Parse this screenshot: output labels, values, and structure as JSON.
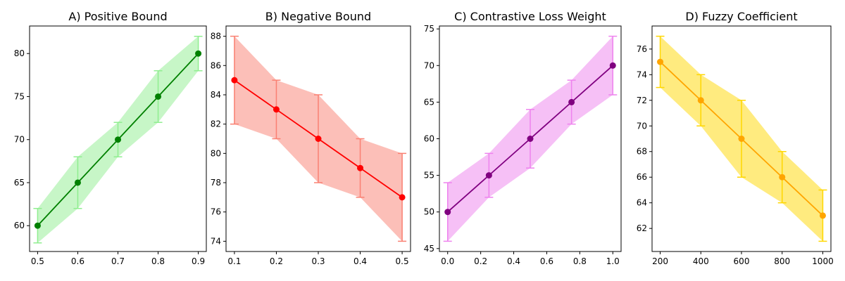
{
  "chart_data": [
    {
      "type": "line",
      "title": "A) Positive Bound",
      "x": [
        0.5,
        0.6,
        0.7,
        0.8,
        0.9
      ],
      "y": [
        60,
        65,
        70,
        75,
        80
      ],
      "lower": [
        58,
        62,
        68,
        72,
        78
      ],
      "upper": [
        62,
        68,
        72,
        78,
        82
      ],
      "xlim": [
        0.48,
        0.92
      ],
      "ylim": [
        57,
        83.2
      ],
      "xticks": [
        0.5,
        0.6,
        0.7,
        0.8,
        0.9
      ],
      "xtick_labels": [
        "0.5",
        "0.6",
        "0.7",
        "0.8",
        "0.9"
      ],
      "yticks": [
        60,
        65,
        70,
        75,
        80
      ],
      "ytick_labels": [
        "60",
        "65",
        "70",
        "75",
        "80"
      ],
      "colors": {
        "line": "#008000",
        "band": "#90ee90",
        "error": "#90ee90"
      }
    },
    {
      "type": "line",
      "title": "B) Negative Bound",
      "x": [
        0.1,
        0.2,
        0.3,
        0.4,
        0.5
      ],
      "y": [
        85,
        83,
        81,
        79,
        77
      ],
      "lower": [
        82,
        81,
        78,
        77,
        74
      ],
      "upper": [
        88,
        85,
        84,
        81,
        80
      ],
      "xlim": [
        0.08,
        0.52
      ],
      "ylim": [
        73.3,
        88.7
      ],
      "xticks": [
        0.1,
        0.2,
        0.3,
        0.4,
        0.5
      ],
      "xtick_labels": [
        "0.1",
        "0.2",
        "0.3",
        "0.4",
        "0.5"
      ],
      "yticks": [
        74,
        76,
        78,
        80,
        82,
        84,
        86,
        88
      ],
      "ytick_labels": [
        "74",
        "76",
        "78",
        "80",
        "82",
        "84",
        "86",
        "88"
      ],
      "colors": {
        "line": "#ff0000",
        "band": "#fa8072",
        "error": "#fa8072"
      }
    },
    {
      "type": "line",
      "title": "C) Contrastive Loss Weight",
      "x": [
        0.0,
        0.25,
        0.5,
        0.75,
        1.0
      ],
      "y": [
        50,
        55,
        60,
        65,
        70
      ],
      "lower": [
        46,
        52,
        56,
        62,
        66
      ],
      "upper": [
        54,
        58,
        64,
        68,
        74
      ],
      "xlim": [
        -0.05,
        1.05
      ],
      "ylim": [
        44.6,
        75.4
      ],
      "xticks": [
        0.0,
        0.2,
        0.4,
        0.6,
        0.8,
        1.0
      ],
      "xtick_labels": [
        "0.0",
        "0.2",
        "0.4",
        "0.6",
        "0.8",
        "1.0"
      ],
      "yticks": [
        45,
        50,
        55,
        60,
        65,
        70,
        75
      ],
      "ytick_labels": [
        "45",
        "50",
        "55",
        "60",
        "65",
        "70",
        "75"
      ],
      "colors": {
        "line": "#800080",
        "band": "#ee82ee",
        "error": "#ee82ee"
      }
    },
    {
      "type": "line",
      "title": "D) Fuzzy Coefficient",
      "x": [
        200,
        400,
        600,
        800,
        1000
      ],
      "y": [
        75,
        72,
        69,
        66,
        63
      ],
      "lower": [
        73,
        70,
        66,
        64,
        61
      ],
      "upper": [
        77,
        74,
        72,
        68,
        65
      ],
      "xlim": [
        160,
        1040
      ],
      "ylim": [
        60.2,
        77.8
      ],
      "xticks": [
        200,
        400,
        600,
        800,
        1000
      ],
      "xtick_labels": [
        "200",
        "400",
        "600",
        "800",
        "1000"
      ],
      "yticks": [
        62,
        64,
        66,
        68,
        70,
        72,
        74,
        76
      ],
      "ytick_labels": [
        "62",
        "64",
        "66",
        "68",
        "70",
        "72",
        "74",
        "76"
      ],
      "colors": {
        "line": "#ffa500",
        "band": "#ffd700",
        "error": "#ffd700"
      }
    }
  ]
}
